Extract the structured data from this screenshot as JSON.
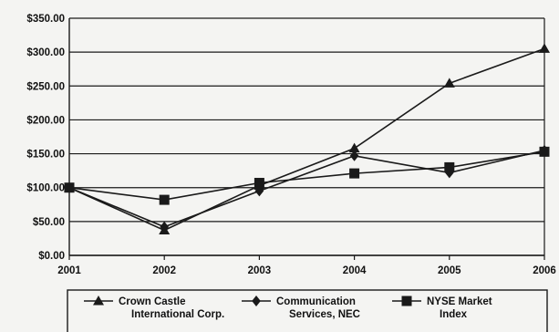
{
  "chart_data": {
    "type": "line",
    "title": "",
    "xlabel": "",
    "ylabel": "",
    "x": [
      2001,
      2002,
      2003,
      2004,
      2005,
      2006
    ],
    "x_tick_labels": [
      "2001",
      "2002",
      "2003",
      "2004",
      "2005",
      "2006"
    ],
    "ylim": [
      0,
      350
    ],
    "y_tick_labels": [
      "$0.00",
      "$50.00",
      "$100.00",
      "$150.00",
      "$200.00",
      "$250.00",
      "$300.00",
      "$350.00"
    ],
    "grid": "horizontal",
    "legend_position": "bottom",
    "series": [
      {
        "name_lines": [
          "Crown Castle",
          "International Corp."
        ],
        "marker": "triangle",
        "values": [
          100,
          37,
          103,
          158,
          254,
          305
        ]
      },
      {
        "name_lines": [
          "Communication",
          "Services, NEC"
        ],
        "marker": "diamond",
        "values": [
          100,
          42,
          95,
          147,
          122,
          155
        ]
      },
      {
        "name_lines": [
          "NYSE Market",
          "Index"
        ],
        "marker": "square",
        "values": [
          100,
          82,
          107,
          121,
          130,
          153
        ]
      }
    ],
    "colors": {
      "line": "#1a1a1a",
      "grid": "#1a1a1a",
      "background": "#f4f4f2"
    }
  }
}
